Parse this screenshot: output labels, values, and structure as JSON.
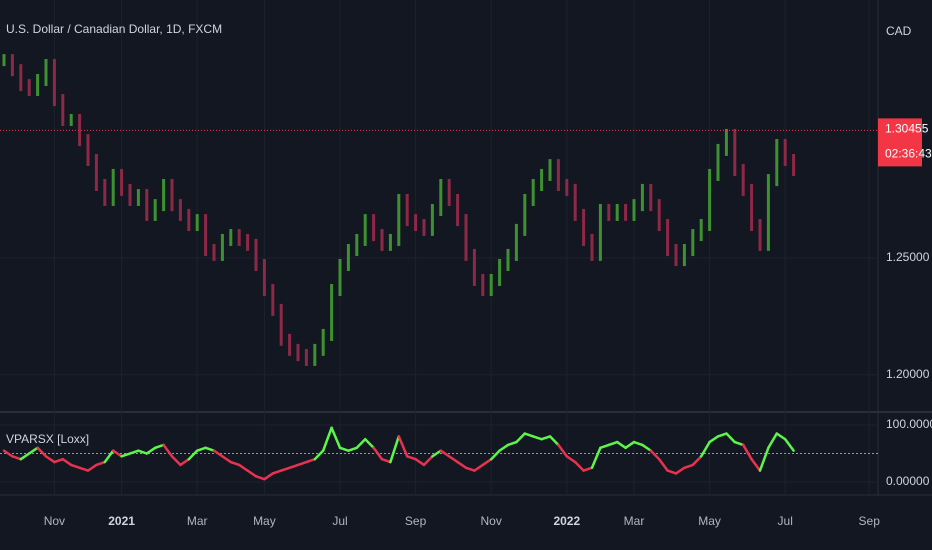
{
  "chart_data": [
    {
      "type": "candle",
      "title": "U.S. Dollar / Canadian Dollar, 1D, FXCM",
      "currency": "CAD",
      "countdown": "02:36:43",
      "last_price": {
        "value": 1.30455,
        "label": "1.30455"
      },
      "up_color": "#3e9130",
      "down_color": "#8e2846",
      "last_color": "#f23645",
      "categories": [
        null,
        null,
        null,
        null,
        null,
        null,
        "Nov",
        null,
        null,
        null,
        null,
        null,
        null,
        null,
        "2021",
        null,
        null,
        null,
        null,
        null,
        null,
        null,
        null,
        "Mar",
        null,
        null,
        null,
        null,
        null,
        null,
        null,
        "May",
        null,
        null,
        null,
        null,
        null,
        null,
        null,
        null,
        "Jul",
        null,
        null,
        null,
        null,
        null,
        null,
        null,
        null,
        "Sep",
        null,
        null,
        null,
        null,
        null,
        null,
        null,
        null,
        "Nov",
        null,
        null,
        null,
        null,
        null,
        null,
        null,
        null,
        "2022",
        null,
        null,
        null,
        null,
        null,
        null,
        null,
        "Mar",
        null,
        null,
        null,
        null,
        null,
        null,
        null,
        null,
        "May",
        null,
        null,
        null,
        null,
        null,
        null,
        null,
        null,
        "Jul",
        null,
        null,
        null,
        null,
        null,
        null,
        null,
        null,
        null,
        "Sep"
      ],
      "values": [
        1.3346,
        1.3303,
        1.3239,
        1.3218,
        1.3261,
        1.3325,
        1.3175,
        1.309,
        1.309,
        1.3004,
        1.2919,
        1.2812,
        1.2748,
        1.2855,
        1.2791,
        1.2748,
        1.2769,
        1.2684,
        1.2726,
        1.2812,
        1.2726,
        1.2684,
        1.2641,
        1.2662,
        1.2534,
        1.2513,
        1.2577,
        1.2598,
        1.2577,
        1.2556,
        1.247,
        1.2363,
        1.2278,
        1.215,
        1.2107,
        1.2085,
        1.2064,
        1.2107,
        1.2171,
        1.2363,
        1.247,
        1.2534,
        1.2577,
        1.2662,
        1.2598,
        1.2556,
        1.2577,
        1.2748,
        1.2662,
        1.2641,
        1.262,
        1.2705,
        1.2812,
        1.2748,
        1.2662,
        1.2513,
        1.2406,
        1.2363,
        1.2406,
        1.247,
        1.2513,
        1.262,
        1.2748,
        1.2812,
        1.2855,
        1.2897,
        1.2812,
        1.2791,
        1.2684,
        1.2577,
        1.2513,
        1.2705,
        1.2684,
        1.2705,
        1.2684,
        1.2726,
        1.2791,
        1.2726,
        1.2641,
        1.2534,
        1.2491,
        1.2534,
        1.2598,
        1.2641,
        1.2855,
        1.2962,
        1.3026,
        1.2876,
        1.2791,
        1.2641,
        1.2556,
        1.2833,
        1.2983,
        1.2919,
        1.2876,
        null,
        null,
        null,
        null,
        null,
        null,
        null,
        null,
        null
      ],
      "ylim": [
        1.185,
        1.3603
      ],
      "yticks": [
        {
          "value": 1.2,
          "label": "1.20000"
        },
        {
          "value": 1.25,
          "label": "1.25000"
        }
      ],
      "grid": true
    },
    {
      "type": "line",
      "title": "VPARSX [Loxx]",
      "up_color": "#5ef54a",
      "down_color": "#e8324f",
      "midline": 50,
      "values": [
        55,
        45,
        40,
        50,
        60,
        45,
        35,
        40,
        30,
        25,
        20,
        30,
        35,
        55,
        45,
        50,
        55,
        50,
        60,
        65,
        45,
        30,
        40,
        55,
        60,
        55,
        45,
        35,
        30,
        20,
        10,
        5,
        15,
        20,
        25,
        30,
        35,
        40,
        55,
        95,
        60,
        55,
        60,
        75,
        60,
        40,
        35,
        80,
        45,
        40,
        30,
        45,
        55,
        45,
        35,
        25,
        20,
        30,
        40,
        55,
        65,
        70,
        85,
        80,
        75,
        80,
        65,
        45,
        35,
        20,
        25,
        60,
        65,
        70,
        60,
        70,
        65,
        55,
        40,
        20,
        15,
        25,
        30,
        45,
        70,
        80,
        85,
        70,
        65,
        40,
        20,
        60,
        85,
        75,
        55,
        null,
        null,
        null,
        null,
        null,
        null,
        null,
        null,
        null
      ],
      "ylim": [
        -17.5,
        117.5
      ],
      "yticks": [
        {
          "value": 100,
          "label": "100.00000"
        },
        {
          "value": 0,
          "label": "0.00000"
        }
      ],
      "grid": true
    }
  ]
}
